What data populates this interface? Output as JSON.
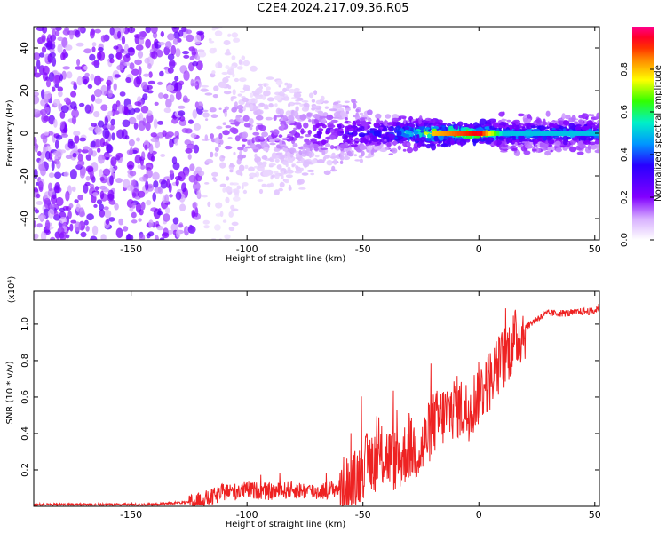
{
  "chart_data": [
    {
      "type": "heatmap",
      "title": "C2E4.2024.217.09.36.R05",
      "xlabel": "Height of straight line (km)",
      "ylabel": "Frequency (Hz)",
      "xlim": [
        -192,
        52
      ],
      "ylim": [
        -50,
        50
      ],
      "xticks": [
        -150,
        -100,
        -50,
        0,
        50
      ],
      "yticks": [
        -40,
        -20,
        0,
        20,
        40
      ],
      "colorbar": {
        "label": "Normalized spectral amplitude",
        "range": [
          0,
          1
        ],
        "ticks": [
          "0.0",
          "0.2",
          "0.4",
          "0.6",
          "0.8"
        ],
        "colors": [
          "#ffffff",
          "#d9b3ff",
          "#7f00ff",
          "#3300ff",
          "#00aaff",
          "#00ffcc",
          "#33ff00",
          "#ffff00",
          "#ff8800",
          "#ff0000",
          "#ff0088"
        ]
      },
      "spectral_band": {
        "center_frequency_hz": 0,
        "noise_region_end_km": -120,
        "profile": [
          {
            "x": -192,
            "halfwidth_hz": 50,
            "amplitude": 0.1
          },
          {
            "x": -120,
            "halfwidth_hz": 50,
            "amplitude": 0.12
          },
          {
            "x": -100,
            "halfwidth_hz": 15,
            "amplitude": 0.18
          },
          {
            "x": -80,
            "halfwidth_hz": 12,
            "amplitude": 0.2
          },
          {
            "x": -60,
            "halfwidth_hz": 8,
            "amplitude": 0.3
          },
          {
            "x": -40,
            "halfwidth_hz": 5,
            "amplitude": 0.4
          },
          {
            "x": -20,
            "halfwidth_hz": 3,
            "amplitude": 0.8
          },
          {
            "x": 0,
            "halfwidth_hz": 2,
            "amplitude": 0.95
          },
          {
            "x": 10,
            "halfwidth_hz": 4,
            "amplitude": 0.5
          },
          {
            "x": 52,
            "halfwidth_hz": 4,
            "amplitude": 0.5
          }
        ]
      }
    },
    {
      "type": "line",
      "xlabel": "Height of straight line (km)",
      "ylabel": "SNR (10 * v/v)",
      "ymultiplier": "(x10⁴)",
      "xlim": [
        -192,
        52
      ],
      "ylim": [
        0,
        1.18
      ],
      "xticks": [
        -150,
        -100,
        -50,
        0,
        50
      ],
      "yticks": [
        "0.2",
        "0.4",
        "0.6",
        "0.8",
        "1.0"
      ],
      "line_color": "#ee2222",
      "series": [
        {
          "x": [
            -192,
            -180,
            -170,
            -160,
            -150,
            -140,
            -130,
            -125,
            -120,
            -115,
            -110,
            -105,
            -100,
            -90,
            -80,
            -70,
            -60,
            -55,
            -50,
            -45,
            -40,
            -35,
            -30,
            -25,
            -20,
            -15,
            -10,
            -5,
            0,
            5,
            10,
            15,
            20,
            25,
            30,
            35,
            40,
            45,
            50,
            52
          ],
          "values": [
            0.01,
            0.01,
            0.01,
            0.01,
            0.01,
            0.01,
            0.02,
            0.02,
            0.03,
            0.05,
            0.08,
            0.08,
            0.09,
            0.08,
            0.09,
            0.08,
            0.1,
            0.1,
            0.22,
            0.25,
            0.28,
            0.24,
            0.32,
            0.3,
            0.45,
            0.5,
            0.55,
            0.52,
            0.62,
            0.7,
            0.8,
            0.9,
            0.98,
            1.03,
            1.06,
            1.06,
            1.06,
            1.07,
            1.07,
            1.1
          ]
        }
      ]
    }
  ]
}
